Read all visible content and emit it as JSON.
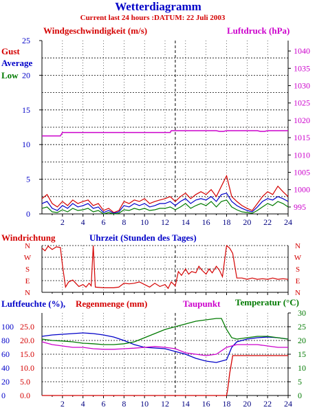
{
  "header": {
    "title": "Wetterdiagramm",
    "subtitle": "Current last 24 hours :DATUM: 22 Juli 2003"
  },
  "colors": {
    "red": "#d40000",
    "blue": "#0000c8",
    "green": "#007a00",
    "magenta": "#cc00cc",
    "axis": "#000000",
    "grid": "#000000"
  },
  "chart_data": [
    {
      "type": "line",
      "title": "",
      "xlabel": "",
      "left_axis_label": "Windgeschwindigkeit (m/s)",
      "right_axis_label": "Luftdruck (hPa)",
      "legend": [
        "Gust",
        "Average",
        "Low"
      ],
      "x_ticks": [
        2,
        4,
        6,
        8,
        10,
        12,
        14,
        16,
        18,
        20,
        22,
        24
      ],
      "xlim": [
        0,
        24
      ],
      "y_ticks": [
        0,
        5,
        10,
        15,
        20,
        25
      ],
      "ylim": [
        0,
        25
      ],
      "y2_ticks": [
        995,
        1000,
        1005,
        1010,
        1015,
        1020,
        1025,
        1030,
        1035,
        1040
      ],
      "y2lim": [
        993,
        1043
      ],
      "grid": true,
      "series": [
        {
          "name": "Gust",
          "color": "#d40000",
          "axis": "left",
          "x": [
            0,
            0.5,
            1,
            1.5,
            2,
            2.5,
            3,
            3.5,
            4,
            4.5,
            5,
            5.5,
            6,
            6.5,
            7,
            7.5,
            8,
            8.5,
            9,
            9.5,
            10,
            10.5,
            11,
            11.5,
            12,
            12.5,
            13,
            13.5,
            14,
            14.5,
            15,
            15.5,
            16,
            16.5,
            17,
            17.5,
            18,
            18.5,
            19,
            19.5,
            20,
            20.5,
            21,
            21.5,
            22,
            22.5,
            23,
            23.5,
            24
          ],
          "values": [
            2.2,
            2.8,
            1.5,
            1.0,
            1.8,
            1.2,
            2.0,
            1.5,
            1.8,
            2.0,
            1.2,
            1.5,
            0.5,
            0.8,
            0.2,
            0.5,
            1.8,
            1.5,
            2.0,
            1.8,
            2.2,
            1.5,
            1.8,
            2.0,
            2.2,
            2.5,
            1.8,
            2.5,
            3.0,
            2.2,
            2.8,
            3.2,
            2.8,
            3.5,
            2.5,
            4.0,
            5.5,
            2.5,
            1.8,
            1.2,
            0.8,
            0.5,
            1.5,
            2.5,
            3.2,
            2.8,
            4.0,
            3.2,
            2.5
          ]
        },
        {
          "name": "Average",
          "color": "#0000c8",
          "axis": "left",
          "x": [
            0,
            0.5,
            1,
            1.5,
            2,
            2.5,
            3,
            3.5,
            4,
            4.5,
            5,
            5.5,
            6,
            6.5,
            7,
            7.5,
            8,
            8.5,
            9,
            9.5,
            10,
            10.5,
            11,
            11.5,
            12,
            12.5,
            13,
            13.5,
            14,
            14.5,
            15,
            15.5,
            16,
            16.5,
            17,
            17.5,
            18,
            18.5,
            19,
            19.5,
            20,
            20.5,
            21,
            21.5,
            22,
            22.5,
            23,
            23.5,
            24
          ],
          "values": [
            1.5,
            1.8,
            0.8,
            0.5,
            1.2,
            0.8,
            1.5,
            1.0,
            1.2,
            1.5,
            0.8,
            1.0,
            0.2,
            0.5,
            0.1,
            0.3,
            1.2,
            1.0,
            1.5,
            1.2,
            1.5,
            1.0,
            1.2,
            1.5,
            1.5,
            1.8,
            1.2,
            1.8,
            2.2,
            1.5,
            2.0,
            2.2,
            2.0,
            2.5,
            1.8,
            2.8,
            3.0,
            1.8,
            1.2,
            0.8,
            0.5,
            0.3,
            1.0,
            1.8,
            2.2,
            2.0,
            2.5,
            2.2,
            1.8
          ]
        },
        {
          "name": "Low",
          "color": "#007a00",
          "axis": "left",
          "x": [
            0,
            0.5,
            1,
            1.5,
            2,
            2.5,
            3,
            3.5,
            4,
            4.5,
            5,
            5.5,
            6,
            6.5,
            7,
            7.5,
            8,
            8.5,
            9,
            9.5,
            10,
            10.5,
            11,
            11.5,
            12,
            12.5,
            13,
            13.5,
            14,
            14.5,
            15,
            15.5,
            16,
            16.5,
            17,
            17.5,
            18,
            18.5,
            19,
            19.5,
            20,
            20.5,
            21,
            21.5,
            22,
            22.5,
            23,
            23.5,
            24
          ],
          "values": [
            0.8,
            1.0,
            0.3,
            0.2,
            0.6,
            0.3,
            0.8,
            0.5,
            0.6,
            0.8,
            0.3,
            0.5,
            0.0,
            0.2,
            0.0,
            0.1,
            0.6,
            0.5,
            0.8,
            0.6,
            0.8,
            0.5,
            0.6,
            0.8,
            0.8,
            1.0,
            0.6,
            1.0,
            1.5,
            0.8,
            1.2,
            1.5,
            1.2,
            1.8,
            1.0,
            1.8,
            2.0,
            1.0,
            0.6,
            0.3,
            0.2,
            0.1,
            0.5,
            1.0,
            1.5,
            1.2,
            1.8,
            1.5,
            1.0
          ]
        },
        {
          "name": "Luftdruck",
          "color": "#cc00cc",
          "axis": "right",
          "x": [
            0,
            1.8,
            2,
            12.5,
            12.6,
            17,
            17.3,
            17.7,
            18,
            21,
            21.3,
            21.7,
            22,
            24
          ],
          "values": [
            1015.5,
            1015.5,
            1016.5,
            1016.5,
            1017.0,
            1017.0,
            1016.8,
            1016.8,
            1017.0,
            1017.0,
            1016.8,
            1016.8,
            1017.0,
            1017.0
          ]
        }
      ]
    },
    {
      "type": "line",
      "title": "",
      "left_axis_label": "Windrichtung",
      "xlabel": "Uhrzeit (Stunden des Tages)",
      "y_ticks": [
        "N",
        "W",
        "S",
        "E",
        "N"
      ],
      "ylim": [
        0,
        360
      ],
      "xlim": [
        0,
        24
      ],
      "grid": true,
      "series": [
        {
          "color": "#d40000",
          "x": [
            0,
            0.3,
            0.6,
            1,
            1.4,
            1.8,
            2,
            2.3,
            2.6,
            3,
            3.3,
            3.6,
            4,
            4.3,
            4.6,
            4.8,
            5,
            5.2,
            6,
            7,
            7.5,
            8,
            8.5,
            9,
            9.5,
            10,
            10.5,
            11,
            11.5,
            12,
            12.3,
            12.6,
            13,
            13.3,
            13.6,
            14,
            14.3,
            14.6,
            15,
            15.3,
            15.6,
            16,
            16.3,
            16.6,
            17,
            17.3,
            17.6,
            18,
            18.3,
            18.6,
            19,
            19.5,
            20,
            20.5,
            21,
            21.5,
            22,
            22.5,
            23,
            23.5,
            24
          ],
          "values": [
            340,
            320,
            355,
            330,
            350,
            345,
            210,
            40,
            80,
            95,
            70,
            45,
            60,
            40,
            70,
            50,
            360,
            40,
            35,
            35,
            40,
            70,
            65,
            70,
            80,
            60,
            40,
            70,
            45,
            60,
            30,
            80,
            50,
            160,
            130,
            180,
            140,
            160,
            150,
            200,
            170,
            140,
            180,
            150,
            200,
            170,
            120,
            360,
            340,
            300,
            110,
            110,
            100,
            110,
            100,
            105,
            100,
            110,
            100,
            105,
            100
          ]
        }
      ]
    },
    {
      "type": "line",
      "title": "",
      "left_axis_label": "Luftfeuchte (%),",
      "left_axis_label2": "Regenmenge (mm)",
      "mid_axis_label": "Taupunkt",
      "right_axis_label": "Temperatur (°C)",
      "y_ticks_humidity": [
        0,
        20,
        40,
        60,
        80,
        100
      ],
      "y_ticks_rain": [
        "0.0",
        "5.0",
        "10.0",
        "15.0",
        "20.0",
        "25.0"
      ],
      "y_ticks_temp": [
        0,
        5,
        10,
        15,
        20,
        25,
        30
      ],
      "xlim": [
        0,
        24
      ],
      "grid": true,
      "series": [
        {
          "name": "Luftfeuchte",
          "color": "#0000c8",
          "axis": "humidity",
          "x": [
            0,
            1,
            2,
            3,
            4,
            5,
            6,
            7,
            8,
            9,
            10,
            11,
            12,
            13,
            14,
            15,
            16,
            17,
            18,
            18.5,
            19,
            20,
            21,
            22,
            23,
            24
          ],
          "values": [
            86,
            88,
            89,
            90,
            91,
            90,
            88,
            85,
            80,
            74,
            70,
            69,
            68,
            64,
            60,
            54,
            50,
            48,
            52,
            70,
            78,
            82,
            84,
            85,
            84,
            82
          ]
        },
        {
          "name": "Regenmenge",
          "color": "#d40000",
          "axis": "rain",
          "x": [
            0,
            18.0,
            18.1,
            18.3,
            18.6,
            24
          ],
          "values": [
            0.0,
            0.0,
            2.0,
            8.0,
            14.5,
            14.5
          ]
        },
        {
          "name": "Taupunkt",
          "color": "#cc00cc",
          "axis": "temp",
          "x": [
            0,
            1,
            2,
            3,
            4,
            5,
            6,
            7,
            8,
            9,
            10,
            11,
            12,
            13,
            14,
            15,
            16,
            17,
            18,
            19,
            20,
            21,
            22,
            23,
            24
          ],
          "values": [
            19.5,
            18.5,
            18.0,
            17.5,
            17.5,
            17.0,
            16.8,
            16.8,
            17.0,
            17.2,
            17.5,
            17.8,
            17.5,
            17.0,
            15.5,
            15.0,
            14.5,
            15.0,
            17.5,
            18.5,
            18.5,
            18.5,
            18.0,
            17.5,
            17.5
          ]
        },
        {
          "name": "Temperatur",
          "color": "#007a00",
          "axis": "temp",
          "x": [
            0,
            1,
            2,
            3,
            4,
            5,
            6,
            7,
            8,
            9,
            10,
            11,
            12,
            13,
            14,
            15,
            16,
            17,
            17.5,
            18,
            18.5,
            19,
            20,
            21,
            22,
            23,
            24
          ],
          "values": [
            20.5,
            20.0,
            19.8,
            19.5,
            19.0,
            18.8,
            18.5,
            18.5,
            18.8,
            19.5,
            21.0,
            22.5,
            24.0,
            25.0,
            26.0,
            27.0,
            27.5,
            28.0,
            28.0,
            24.0,
            21.0,
            20.5,
            21.0,
            21.5,
            21.5,
            21.0,
            20.5
          ]
        }
      ]
    }
  ]
}
